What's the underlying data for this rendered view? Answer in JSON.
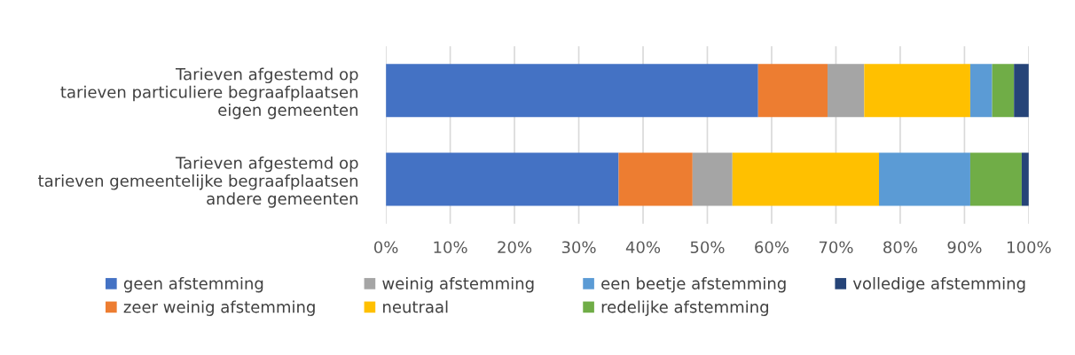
{
  "chart_data": {
    "type": "bar",
    "orientation": "horizontal",
    "stacked": true,
    "categories": [
      "Tarieven afgestemd op\ntarieven particuliere begraafplaatsen\neigen gemeenten",
      "Tarieven afgestemd op\ntarieven gemeentelijke begraafplaatsen\nandere gemeenten"
    ],
    "series": [
      {
        "name": "geen afstemming",
        "color": "#4472c4",
        "values": [
          57.9,
          36.2
        ]
      },
      {
        "name": "zeer weinig afstemming",
        "color": "#ed7d31",
        "values": [
          10.8,
          11.5
        ]
      },
      {
        "name": "weinig afstemming",
        "color": "#a5a5a5",
        "values": [
          5.7,
          6.2
        ]
      },
      {
        "name": "neutraal",
        "color": "#ffc000",
        "values": [
          16.5,
          22.8
        ]
      },
      {
        "name": "een beetje afstemming",
        "color": "#5b9bd5",
        "values": [
          3.4,
          14.2
        ]
      },
      {
        "name": "redelijke afstemming",
        "color": "#70ad47",
        "values": [
          3.4,
          8.0
        ]
      },
      {
        "name": "volledige afstemming",
        "color": "#264478",
        "values": [
          2.3,
          1.1
        ]
      }
    ],
    "xlim": [
      0,
      100
    ],
    "xticks": [
      {
        "value": 0,
        "label": "0%"
      },
      {
        "value": 10,
        "label": "10%"
      },
      {
        "value": 20,
        "label": "20%"
      },
      {
        "value": 30,
        "label": "30%"
      },
      {
        "value": 40,
        "label": "40%"
      },
      {
        "value": 50,
        "label": "50%"
      },
      {
        "value": 60,
        "label": "60%"
      },
      {
        "value": 70,
        "label": "70%"
      },
      {
        "value": 80,
        "label": "80%"
      },
      {
        "value": 90,
        "label": "90%"
      },
      {
        "value": 100,
        "label": "100%"
      }
    ],
    "grid": "x",
    "legend": "bottom"
  }
}
